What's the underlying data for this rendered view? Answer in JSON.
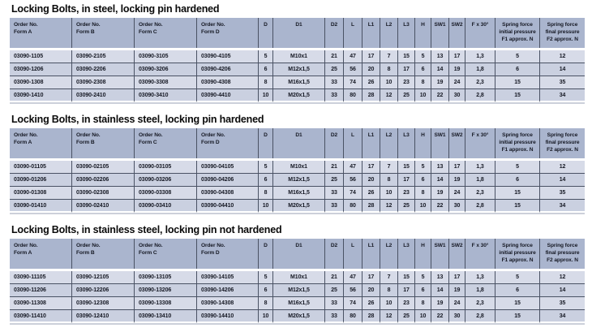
{
  "colors": {
    "page_bg": "#ffffff",
    "header_bg": "#aab5ce",
    "row_light_bg": "#d7dbe8",
    "row_dark_bg": "#cad0e0",
    "grid_line": "#4a5264",
    "table_shadow": "#ccd0da",
    "title_text": "#0a0a0a",
    "cell_text": "#161924"
  },
  "columns": [
    {
      "id": "form-a",
      "label": "Order No.\nForm A",
      "align": "left"
    },
    {
      "id": "form-b",
      "label": "Order No.\nForm B",
      "align": "left"
    },
    {
      "id": "form-c",
      "label": "Order No.\nForm C",
      "align": "left"
    },
    {
      "id": "form-d",
      "label": "Order No.\nForm D",
      "align": "left"
    },
    {
      "id": "d",
      "label": "D",
      "align": "center"
    },
    {
      "id": "d1",
      "label": "D1",
      "align": "center"
    },
    {
      "id": "d2",
      "label": "D2",
      "align": "center"
    },
    {
      "id": "l",
      "label": "L",
      "align": "center"
    },
    {
      "id": "l1",
      "label": "L1",
      "align": "center"
    },
    {
      "id": "l2",
      "label": "L2",
      "align": "center"
    },
    {
      "id": "l3",
      "label": "L3",
      "align": "center"
    },
    {
      "id": "h",
      "label": "H",
      "align": "center"
    },
    {
      "id": "sw1",
      "label": "SW1",
      "align": "center"
    },
    {
      "id": "sw2",
      "label": "SW2",
      "align": "center"
    },
    {
      "id": "f-x-30",
      "label": "F x 30°",
      "align": "center"
    },
    {
      "id": "f1",
      "label": "Spring force\ninitial pressure\nF1 approx. N",
      "align": "center"
    },
    {
      "id": "f2",
      "label": "Spring force\nfinal pressure\nF2 approx. N",
      "align": "center"
    }
  ],
  "tables": [
    {
      "title": "Locking Bolts, in steel, locking pin hardened",
      "rows": [
        [
          "03090-1105",
          "03090-2105",
          "03090-3105",
          "03090-4105",
          "5",
          "M10x1",
          "21",
          "47",
          "17",
          "7",
          "15",
          "5",
          "13",
          "17",
          "1,3",
          "5",
          "12"
        ],
        [
          "03090-1206",
          "03090-2206",
          "03090-3206",
          "03090-4206",
          "6",
          "M12x1,5",
          "25",
          "56",
          "20",
          "8",
          "17",
          "6",
          "14",
          "19",
          "1,8",
          "6",
          "14"
        ],
        [
          "03090-1308",
          "03090-2308",
          "03090-3308",
          "03090-4308",
          "8",
          "M16x1,5",
          "33",
          "74",
          "26",
          "10",
          "23",
          "8",
          "19",
          "24",
          "2,3",
          "15",
          "35"
        ],
        [
          "03090-1410",
          "03090-2410",
          "03090-3410",
          "03090-4410",
          "10",
          "M20x1,5",
          "33",
          "80",
          "28",
          "12",
          "25",
          "10",
          "22",
          "30",
          "2,8",
          "15",
          "34"
        ]
      ]
    },
    {
      "title": "Locking Bolts, in stainless steel, locking pin hardened",
      "rows": [
        [
          "03090-01105",
          "03090-02105",
          "03090-03105",
          "03090-04105",
          "5",
          "M10x1",
          "21",
          "47",
          "17",
          "7",
          "15",
          "5",
          "13",
          "17",
          "1,3",
          "5",
          "12"
        ],
        [
          "03090-01206",
          "03090-02206",
          "03090-03206",
          "03090-04206",
          "6",
          "M12x1,5",
          "25",
          "56",
          "20",
          "8",
          "17",
          "6",
          "14",
          "19",
          "1,8",
          "6",
          "14"
        ],
        [
          "03090-01308",
          "03090-02308",
          "03090-03308",
          "03090-04308",
          "8",
          "M16x1,5",
          "33",
          "74",
          "26",
          "10",
          "23",
          "8",
          "19",
          "24",
          "2,3",
          "15",
          "35"
        ],
        [
          "03090-01410",
          "03090-02410",
          "03090-03410",
          "03090-04410",
          "10",
          "M20x1,5",
          "33",
          "80",
          "28",
          "12",
          "25",
          "10",
          "22",
          "30",
          "2,8",
          "15",
          "34"
        ]
      ]
    },
    {
      "title": "Locking Bolts, in stainless steel, locking pin not hardened",
      "rows": [
        [
          "03090-11105",
          "03090-12105",
          "03090-13105",
          "03090-14105",
          "5",
          "M10x1",
          "21",
          "47",
          "17",
          "7",
          "15",
          "5",
          "13",
          "17",
          "1,3",
          "5",
          "12"
        ],
        [
          "03090-11206",
          "03090-12206",
          "03090-13206",
          "03090-14206",
          "6",
          "M12x1,5",
          "25",
          "56",
          "20",
          "8",
          "17",
          "6",
          "14",
          "19",
          "1,8",
          "6",
          "14"
        ],
        [
          "03090-11308",
          "03090-12308",
          "03090-13308",
          "03090-14308",
          "8",
          "M16x1,5",
          "33",
          "74",
          "26",
          "10",
          "23",
          "8",
          "19",
          "24",
          "2,3",
          "15",
          "35"
        ],
        [
          "03090-11410",
          "03090-12410",
          "03090-13410",
          "03090-14410",
          "10",
          "M20x1,5",
          "33",
          "80",
          "28",
          "12",
          "25",
          "10",
          "22",
          "30",
          "2,8",
          "15",
          "34"
        ]
      ]
    }
  ]
}
